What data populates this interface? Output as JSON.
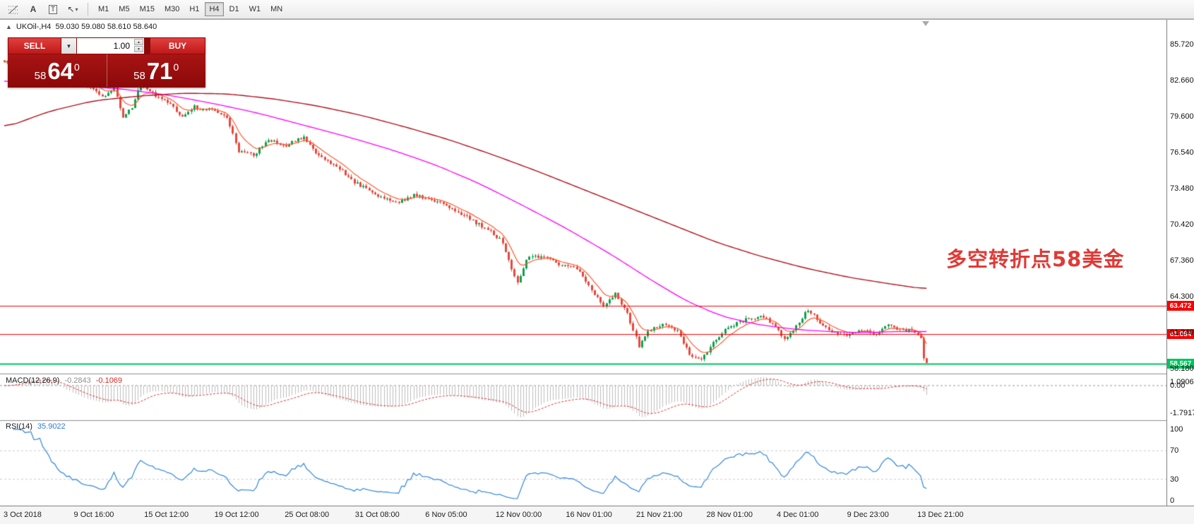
{
  "toolbar": {
    "icons": {
      "text_label": "A",
      "text": "T",
      "arrow": "↖",
      "caret": "▾"
    },
    "timeframes": [
      "M1",
      "M5",
      "M15",
      "M30",
      "H1",
      "H4",
      "D1",
      "W1",
      "MN"
    ],
    "active_timeframe": "H4"
  },
  "chart": {
    "toggle_glyph": "▲",
    "title_symbol": "UKOil-,H4",
    "title_ohlc": "59.030 59.080 58.610 58.640",
    "annotation": {
      "text": "多空转折点58美金",
      "color": "#e03a36"
    },
    "price_axis": [
      "85.720",
      "82.660",
      "79.600",
      "76.540",
      "73.480",
      "70.420",
      "67.360",
      "64.300",
      "61.240",
      "58.180"
    ],
    "time_axis": [
      "3 Oct 2018",
      "9 Oct 16:00",
      "15 Oct 12:00",
      "19 Oct 12:00",
      "25 Oct 08:00",
      "31 Oct 08:00",
      "6 Nov 05:00",
      "12 Nov 00:00",
      "16 Nov 01:00",
      "21 Nov 21:00",
      "28 Nov 01:00",
      "4 Dec 01:00",
      "9 Dec 23:00",
      "13 Dec 21:00"
    ],
    "hlines": [
      {
        "label": "63.472",
        "color": "#f80000",
        "width": 1
      },
      {
        "label": "61.084",
        "color": "#f80000",
        "width": 1
      },
      {
        "label": "58.567",
        "color": "#00c45e",
        "width": 2
      }
    ]
  },
  "trade_panel": {
    "sell_label": "SELL",
    "buy_label": "BUY",
    "volume": "1.00",
    "dropdown_glyph": "▼",
    "spin_up_glyph": "▲",
    "spin_down_glyph": "▼",
    "sell_price_small": "58",
    "sell_price_big": "64",
    "sell_price_sup": "0",
    "buy_price_small": "58",
    "buy_price_big": "71",
    "buy_price_sup": "0"
  },
  "macd": {
    "name": "MACD(12,26,9)",
    "value_main": "-0.2843",
    "value_signal": "-0.1069",
    "axis": [
      "1.0906",
      "0.00",
      "-1.7917"
    ]
  },
  "rsi": {
    "name": "RSI(14)",
    "value": "35.9022",
    "axis": [
      "100",
      "70",
      "30",
      "0"
    ]
  },
  "chart_data": {
    "type": "candlestick",
    "symbol": "UKOil-",
    "timeframe": "H4",
    "bars_total": 312,
    "last_ohlc": {
      "open": 59.03,
      "high": 59.08,
      "low": 58.61,
      "close": 58.64
    },
    "price_ticks": [
      85.72,
      82.66,
      79.6,
      76.54,
      73.48,
      70.42,
      67.36,
      64.3,
      61.24,
      58.18
    ],
    "horizontal_levels": [
      63.472,
      61.084,
      58.567
    ],
    "close_anchors": [
      [
        0,
        84.2
      ],
      [
        6,
        85.1
      ],
      [
        12,
        85.6
      ],
      [
        18,
        84.0
      ],
      [
        24,
        82.8
      ],
      [
        30,
        81.8
      ],
      [
        34,
        81.2
      ],
      [
        37,
        82.2
      ],
      [
        40,
        79.5
      ],
      [
        43,
        80.4
      ],
      [
        46,
        82.4
      ],
      [
        50,
        81.5
      ],
      [
        55,
        80.8
      ],
      [
        60,
        79.6
      ],
      [
        64,
        80.4
      ],
      [
        70,
        80.1
      ],
      [
        75,
        79.6
      ],
      [
        79,
        76.6
      ],
      [
        84,
        76.3
      ],
      [
        89,
        77.6
      ],
      [
        95,
        77.1
      ],
      [
        101,
        77.9
      ],
      [
        106,
        76.2
      ],
      [
        112,
        75.4
      ],
      [
        118,
        74.0
      ],
      [
        125,
        73.0
      ],
      [
        132,
        72.2
      ],
      [
        138,
        72.9
      ],
      [
        145,
        72.4
      ],
      [
        152,
        71.6
      ],
      [
        158,
        70.7
      ],
      [
        164,
        69.8
      ],
      [
        168,
        68.9
      ],
      [
        171,
        66.5
      ],
      [
        173,
        65.4
      ],
      [
        176,
        67.5
      ],
      [
        181,
        67.7
      ],
      [
        187,
        67.0
      ],
      [
        193,
        66.6
      ],
      [
        198,
        64.9
      ],
      [
        202,
        63.5
      ],
      [
        206,
        64.5
      ],
      [
        210,
        62.8
      ],
      [
        214,
        60.1
      ],
      [
        217,
        61.3
      ],
      [
        222,
        61.9
      ],
      [
        227,
        61.3
      ],
      [
        231,
        59.4
      ],
      [
        235,
        58.9
      ],
      [
        239,
        60.3
      ],
      [
        244,
        61.7
      ],
      [
        250,
        62.3
      ],
      [
        255,
        62.6
      ],
      [
        259,
        62.0
      ],
      [
        263,
        60.6
      ],
      [
        267,
        61.7
      ],
      [
        271,
        63.2
      ],
      [
        275,
        62.1
      ],
      [
        279,
        61.3
      ],
      [
        284,
        61.0
      ],
      [
        289,
        61.4
      ],
      [
        294,
        61.1
      ],
      [
        298,
        61.8
      ],
      [
        302,
        61.4
      ],
      [
        306,
        61.4
      ],
      [
        308,
        61.1
      ],
      [
        309,
        60.6
      ],
      [
        310,
        59.03
      ],
      [
        311,
        58.64
      ]
    ],
    "ma_mid_anchors": [
      [
        0,
        82.6
      ],
      [
        20,
        82.3
      ],
      [
        40,
        81.9
      ],
      [
        55,
        81.4
      ],
      [
        70,
        80.7
      ],
      [
        85,
        79.9
      ],
      [
        100,
        78.9
      ],
      [
        115,
        77.9
      ],
      [
        130,
        76.8
      ],
      [
        145,
        75.5
      ],
      [
        160,
        73.9
      ],
      [
        175,
        72.0
      ],
      [
        190,
        70.0
      ],
      [
        205,
        67.8
      ],
      [
        218,
        65.7
      ],
      [
        230,
        63.9
      ],
      [
        242,
        62.6
      ],
      [
        254,
        61.9
      ],
      [
        266,
        61.5
      ],
      [
        278,
        61.3
      ],
      [
        290,
        61.2
      ],
      [
        300,
        61.3
      ],
      [
        311,
        61.3
      ]
    ],
    "ma_slow_anchors": [
      [
        0,
        78.6
      ],
      [
        15,
        80.0
      ],
      [
        30,
        80.9
      ],
      [
        45,
        81.3
      ],
      [
        60,
        81.55
      ],
      [
        75,
        81.5
      ],
      [
        90,
        81.1
      ],
      [
        105,
        80.5
      ],
      [
        120,
        79.7
      ],
      [
        135,
        78.7
      ],
      [
        150,
        77.6
      ],
      [
        165,
        76.3
      ],
      [
        180,
        74.9
      ],
      [
        195,
        73.4
      ],
      [
        210,
        71.9
      ],
      [
        225,
        70.4
      ],
      [
        240,
        68.9
      ],
      [
        255,
        67.7
      ],
      [
        270,
        66.7
      ],
      [
        285,
        65.9
      ],
      [
        300,
        65.3
      ],
      [
        311,
        64.9
      ]
    ],
    "indicators": {
      "macd": {
        "fast": 12,
        "slow": 26,
        "signal": 9
      },
      "rsi": {
        "period": 14,
        "levels": [
          70,
          30
        ]
      }
    },
    "colors": {
      "up": "#0ea04f",
      "down": "#e5483d",
      "ma_fast": "#ff5a30",
      "ma_mid": "#ff00ff",
      "ma_slow": "#b0131f",
      "macd_hist": "#bdbdbd",
      "macd_signal": "#e03030",
      "rsi_line": "#3e8ede",
      "level_dash": "#c9c9c9",
      "zero_dash": "#9a9a9a"
    }
  }
}
